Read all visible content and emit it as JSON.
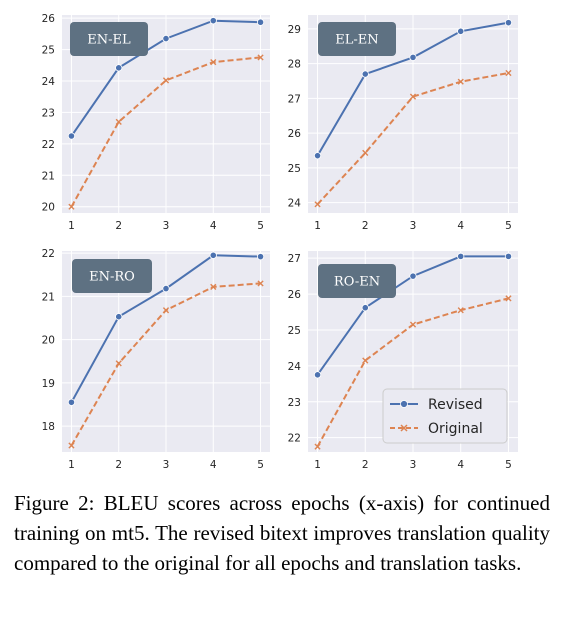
{
  "colors": {
    "revised": "#4c72b0",
    "original": "#dd8452",
    "panel_bg": "#eaeaf2",
    "grid": "#ffffff",
    "badge": "#5e7182"
  },
  "legend": {
    "placement": "lower-right",
    "revised_label": "Revised",
    "original_label": "Original"
  },
  "chart_data": [
    {
      "type": "line",
      "title": "EN-EL",
      "xlabel": "",
      "ylabel": "",
      "x": [
        1,
        2,
        3,
        4,
        5
      ],
      "xlim": [
        0.8,
        5.2
      ],
      "ylim": [
        19.8,
        26.1
      ],
      "yticks": [
        20,
        21,
        22,
        23,
        24,
        25,
        26
      ],
      "grid": true,
      "series": [
        {
          "name": "Revised",
          "marker": "circle",
          "values": [
            22.25,
            24.42,
            25.35,
            25.92,
            25.87
          ]
        },
        {
          "name": "Original",
          "marker": "x",
          "values": [
            20.0,
            22.7,
            24.02,
            24.6,
            24.75
          ]
        }
      ]
    },
    {
      "type": "line",
      "title": "EL-EN",
      "xlabel": "",
      "ylabel": "",
      "x": [
        1,
        2,
        3,
        4,
        5
      ],
      "xlim": [
        0.8,
        5.2
      ],
      "ylim": [
        23.7,
        29.4
      ],
      "yticks": [
        24,
        25,
        26,
        27,
        28,
        29
      ],
      "grid": true,
      "series": [
        {
          "name": "Revised",
          "marker": "circle",
          "values": [
            25.35,
            27.7,
            28.18,
            28.93,
            29.18
          ]
        },
        {
          "name": "Original",
          "marker": "x",
          "values": [
            23.95,
            25.43,
            27.05,
            27.48,
            27.73
          ]
        }
      ]
    },
    {
      "type": "line",
      "title": "EN-RO",
      "xlabel": "",
      "ylabel": "",
      "x": [
        1,
        2,
        3,
        4,
        5
      ],
      "xlim": [
        0.8,
        5.2
      ],
      "ylim": [
        17.4,
        22.05
      ],
      "yticks": [
        18,
        19,
        20,
        21,
        22
      ],
      "grid": true,
      "series": [
        {
          "name": "Revised",
          "marker": "circle",
          "values": [
            18.55,
            20.53,
            21.18,
            21.95,
            21.92
          ]
        },
        {
          "name": "Original",
          "marker": "x",
          "values": [
            17.55,
            19.45,
            20.68,
            21.22,
            21.3
          ]
        }
      ]
    },
    {
      "type": "line",
      "title": "RO-EN",
      "xlabel": "",
      "ylabel": "",
      "x": [
        1,
        2,
        3,
        4,
        5
      ],
      "xlim": [
        0.8,
        5.2
      ],
      "ylim": [
        21.6,
        27.2
      ],
      "yticks": [
        22,
        23,
        24,
        25,
        26,
        27
      ],
      "grid": true,
      "series": [
        {
          "name": "Revised",
          "marker": "circle",
          "values": [
            23.75,
            25.62,
            26.5,
            27.05,
            27.05
          ]
        },
        {
          "name": "Original",
          "marker": "x",
          "values": [
            21.75,
            24.15,
            25.15,
            25.55,
            25.88
          ]
        }
      ]
    }
  ],
  "caption": {
    "prefix": "Figure 2: ",
    "smallcaps": "BLEU",
    "rest": " scores across epochs (x-axis) for continued training on mt5.  The revised bitext improves translation quality compared to the original for all epochs and translation tasks."
  }
}
